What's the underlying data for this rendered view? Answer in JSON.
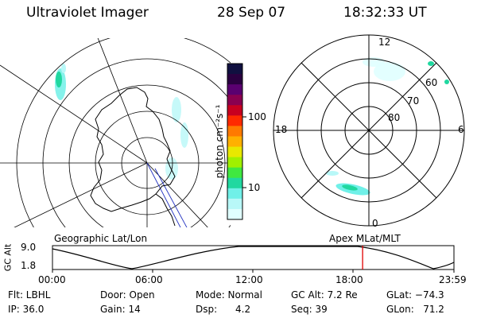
{
  "header": {
    "title": "Ultraviolet Imager",
    "date": "28 Sep 07",
    "time": "18:32:33 UT"
  },
  "colorbar": {
    "unit_label": "photon cm⁻²s⁻¹",
    "ticks": [
      "100",
      "10"
    ],
    "colors": [
      "#101040",
      "#2a0040",
      "#5a0070",
      "#8a0050",
      "#c80020",
      "#ff2a00",
      "#ff7a00",
      "#ffb000",
      "#e8e800",
      "#a0f000",
      "#40e840",
      "#20d8a0",
      "#70f0e8",
      "#b8f8f8",
      "#e0ffff"
    ]
  },
  "polar_plot": {
    "hour_labels": {
      "top": "12",
      "left": "18",
      "right": "6",
      "bottom": "0"
    },
    "lat_labels": [
      "60",
      "70",
      "80"
    ]
  },
  "timeline": {
    "ylabel": "GC Alt",
    "y_ticks": [
      "9.0",
      "1.8"
    ],
    "left_title": "Geographic Lat/Lon",
    "right_title": "Apex MLat/MLT",
    "x_ticks": [
      "00:00",
      "06:00",
      "12:00",
      "18:00",
      "23:59"
    ],
    "marker_time_hours": 18.54
  },
  "status": {
    "filter": "Flt: LBHL",
    "ip": "IP: 36.0",
    "door": "Door: Open",
    "gain": "Gain: 14",
    "mode": "Mode: Normal",
    "dsp": "Dsp:      4.2",
    "gc_alt": "GC Alt: 7.2 Re",
    "seq": "Seq: 39",
    "glat": "GLat: −74.3",
    "glon": "GLon:   71.2"
  }
}
